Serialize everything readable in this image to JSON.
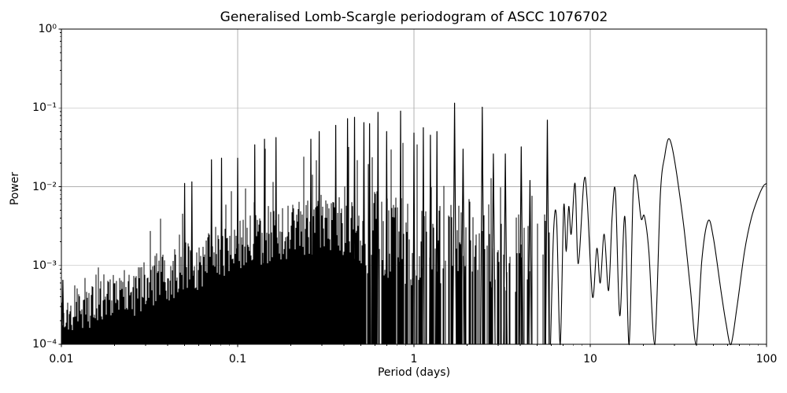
{
  "chart_data": {
    "type": "line",
    "title": "Generalised Lomb-Scargle periodogram of ASCC 1076702",
    "xlabel": "Period (days)",
    "ylabel": "Power",
    "xscale": "log",
    "yscale": "log",
    "xlim": [
      0.01,
      100
    ],
    "ylim": [
      0.0001,
      1
    ],
    "grid": true,
    "legend": "none",
    "line_color": "#000000",
    "grid_color": "#b0b0b0",
    "background_color": "#ffffff",
    "x_ticks": [
      {
        "label": "0.01",
        "value": 0.01
      },
      {
        "label": "0.1",
        "value": 0.1
      },
      {
        "label": "1",
        "value": 1
      },
      {
        "label": "10",
        "value": 10
      },
      {
        "label": "100",
        "value": 100
      }
    ],
    "y_ticks": [
      {
        "label": "10⁰",
        "value": 1
      },
      {
        "label": "10⁻¹",
        "value": 0.1
      },
      {
        "label": "10⁻²",
        "value": 0.01
      },
      {
        "label": "10⁻³",
        "value": 0.001
      },
      {
        "label": "10⁻⁴",
        "value": 0.0001
      }
    ],
    "solid_until": 0.5,
    "spiky_until": 5.9,
    "major_peaks": [
      {
        "period": 0.0102,
        "power": 0.00065
      },
      {
        "period": 0.05,
        "power": 0.011
      },
      {
        "period": 0.055,
        "power": 0.0115
      },
      {
        "period": 0.071,
        "power": 0.022
      },
      {
        "period": 0.081,
        "power": 0.023
      },
      {
        "period": 0.1,
        "power": 0.023
      },
      {
        "period": 0.125,
        "power": 0.034
      },
      {
        "period": 0.142,
        "power": 0.04
      },
      {
        "period": 0.165,
        "power": 0.042
      },
      {
        "period": 0.26,
        "power": 0.04
      },
      {
        "period": 0.29,
        "power": 0.05
      },
      {
        "period": 0.36,
        "power": 0.06
      },
      {
        "period": 0.42,
        "power": 0.073
      },
      {
        "period": 0.46,
        "power": 0.076
      },
      {
        "period": 0.52,
        "power": 0.065
      },
      {
        "period": 0.56,
        "power": 0.063
      },
      {
        "period": 0.625,
        "power": 0.088
      },
      {
        "period": 0.7,
        "power": 0.05
      },
      {
        "period": 0.84,
        "power": 0.091
      },
      {
        "period": 1.0,
        "power": 0.048
      },
      {
        "period": 1.13,
        "power": 0.056
      },
      {
        "period": 1.24,
        "power": 0.045
      },
      {
        "period": 1.35,
        "power": 0.05
      },
      {
        "period": 1.7,
        "power": 0.115
      },
      {
        "period": 1.9,
        "power": 0.03
      },
      {
        "period": 2.44,
        "power": 0.102
      },
      {
        "period": 2.82,
        "power": 0.026
      },
      {
        "period": 3.3,
        "power": 0.026
      },
      {
        "period": 4.06,
        "power": 0.032
      },
      {
        "period": 4.55,
        "power": 0.012
      },
      {
        "period": 5.71,
        "power": 0.07
      }
    ],
    "envelope": [
      [
        0.01,
        0.00065
      ],
      [
        0.015,
        0.0009
      ],
      [
        0.02,
        0.0015
      ],
      [
        0.03,
        0.0032
      ],
      [
        0.04,
        0.006
      ],
      [
        0.05,
        0.011
      ],
      [
        0.06,
        0.01
      ],
      [
        0.07,
        0.022
      ],
      [
        0.08,
        0.023
      ],
      [
        0.09,
        0.017
      ],
      [
        0.1,
        0.023
      ],
      [
        0.125,
        0.034
      ],
      [
        0.15,
        0.042
      ],
      [
        0.2,
        0.033
      ],
      [
        0.26,
        0.04
      ],
      [
        0.3,
        0.052
      ],
      [
        0.36,
        0.06
      ],
      [
        0.45,
        0.076
      ],
      [
        0.55,
        0.063
      ],
      [
        0.63,
        0.088
      ],
      [
        0.75,
        0.05
      ],
      [
        0.84,
        0.09
      ],
      [
        1.0,
        0.048
      ],
      [
        1.3,
        0.045
      ],
      [
        1.6,
        0.025
      ],
      [
        1.8,
        0.035
      ],
      [
        2.1,
        0.022
      ],
      [
        2.6,
        0.02
      ],
      [
        3.0,
        0.018
      ],
      [
        3.6,
        0.015
      ],
      [
        4.3,
        0.012
      ],
      [
        5.0,
        0.009
      ],
      [
        5.9,
        0.005
      ]
    ],
    "floor": [
      [
        0.01,
        0.00026
      ],
      [
        0.02,
        0.00038
      ],
      [
        0.03,
        0.00052
      ],
      [
        0.05,
        0.0008
      ],
      [
        0.07,
        0.0011
      ],
      [
        0.1,
        0.0016
      ],
      [
        0.15,
        0.0022
      ],
      [
        0.22,
        0.0027
      ],
      [
        0.3,
        0.0028
      ],
      [
        0.4,
        0.0026
      ],
      [
        0.5,
        0.0022
      ],
      [
        0.8,
        0.0018
      ],
      [
        1.2,
        0.0014
      ],
      [
        2.0,
        0.0018
      ],
      [
        3.0,
        0.0014
      ],
      [
        4.5,
        0.0011
      ],
      [
        5.9,
        0.0009
      ]
    ],
    "smooth_tail": [
      [
        5.95,
        9.5e-05
      ],
      [
        6.2,
        0.0028
      ],
      [
        6.45,
        0.0037
      ],
      [
        6.75,
        9.5e-05
      ],
      [
        7.07,
        0.0056
      ],
      [
        7.3,
        0.0015
      ],
      [
        7.55,
        0.0056
      ],
      [
        7.8,
        0.0025
      ],
      [
        8.2,
        0.011
      ],
      [
        8.55,
        0.00105
      ],
      [
        9.2,
        0.0115
      ],
      [
        9.6,
        0.007
      ],
      [
        10.3,
        0.0004
      ],
      [
        10.9,
        0.00165
      ],
      [
        11.4,
        0.0006
      ],
      [
        12.0,
        0.0025
      ],
      [
        12.7,
        0.00048
      ],
      [
        13.3,
        0.004
      ],
      [
        13.9,
        0.0085
      ],
      [
        14.7,
        0.00023
      ],
      [
        15.7,
        0.0042
      ],
      [
        16.6,
        9.5e-05
      ],
      [
        17.5,
        0.008
      ],
      [
        18.3,
        0.0125
      ],
      [
        19.4,
        0.004
      ],
      [
        20.3,
        0.0042
      ],
      [
        21.5,
        0.0015
      ],
      [
        23.2,
        9.5e-05
      ],
      [
        25.0,
        0.008
      ],
      [
        26.5,
        0.025
      ],
      [
        27.7,
        0.04
      ],
      [
        29.0,
        0.033
      ],
      [
        31.0,
        0.014
      ],
      [
        34.0,
        0.003
      ],
      [
        37.0,
        0.0005
      ],
      [
        39.9,
        9.5e-05
      ],
      [
        43.0,
        0.0012
      ],
      [
        46.7,
        0.0037
      ],
      [
        50.0,
        0.0022
      ],
      [
        55.0,
        0.0005
      ],
      [
        59.0,
        0.00018
      ],
      [
        62.8,
        9.5e-05
      ],
      [
        68.0,
        0.0003
      ],
      [
        75.0,
        0.0015
      ],
      [
        82.0,
        0.004
      ],
      [
        90.0,
        0.0075
      ],
      [
        96.0,
        0.0102
      ],
      [
        100.0,
        0.011
      ]
    ]
  }
}
